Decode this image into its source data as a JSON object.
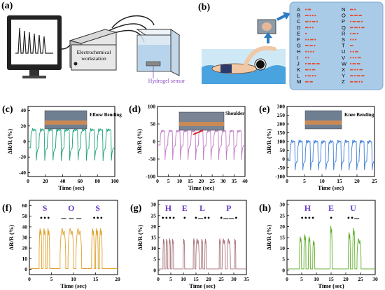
{
  "panels": {
    "a": {
      "label": "(a)",
      "workstation_label_1": "Electrochemical",
      "workstation_label_2": "workstation",
      "sensor_label": "Hydrogel sensor"
    },
    "b": {
      "label": "(b)"
    },
    "c": {
      "label": "(c)",
      "annotation": "Elbow Bending"
    },
    "d": {
      "label": "(d)",
      "annotation": "Shoulder"
    },
    "e": {
      "label": "(e)",
      "annotation": "Knee Bending"
    },
    "f": {
      "label": "(f)"
    },
    "g": {
      "label": "(g)"
    },
    "h": {
      "label": "(h)"
    }
  },
  "morse_table": {
    "left": [
      {
        "letter": "A",
        "code": ".-"
      },
      {
        "letter": "B",
        "code": "-..."
      },
      {
        "letter": "C",
        "code": "-.-."
      },
      {
        "letter": "D",
        "code": "-.."
      },
      {
        "letter": "E",
        "code": "."
      },
      {
        "letter": "F",
        "code": "..-."
      },
      {
        "letter": "G",
        "code": "--."
      },
      {
        "letter": "H",
        "code": "...."
      },
      {
        "letter": "I",
        "code": ".."
      },
      {
        "letter": "J",
        "code": ".---"
      },
      {
        "letter": "K",
        "code": "-.-"
      },
      {
        "letter": "L",
        "code": ".-.."
      },
      {
        "letter": "M",
        "code": "--"
      }
    ],
    "right": [
      {
        "letter": "N",
        "code": "-."
      },
      {
        "letter": "O",
        "code": "---"
      },
      {
        "letter": "P",
        "code": ".--."
      },
      {
        "letter": "Q",
        "code": "--.-"
      },
      {
        "letter": "R",
        "code": ".-."
      },
      {
        "letter": "S",
        "code": "..."
      },
      {
        "letter": "T",
        "code": "-"
      },
      {
        "letter": "U",
        "code": "..-"
      },
      {
        "letter": "V",
        "code": "...-"
      },
      {
        "letter": "W",
        "code": ".--"
      },
      {
        "letter": "X",
        "code": "-..-"
      },
      {
        "letter": "Y",
        "code": "-.--"
      },
      {
        "letter": "Z",
        "code": "--.."
      }
    ]
  },
  "chart_data": [
    {
      "id": "c",
      "type": "line",
      "color": "#1aa37a",
      "xlabel": "Time (sec)",
      "ylabel": "ΔR/R (%)",
      "xlim": [
        0,
        100
      ],
      "ylim": [
        -45,
        45
      ],
      "xticks": [
        0,
        20,
        40,
        60,
        80,
        100
      ],
      "yticks": [
        -40,
        -20,
        0,
        20,
        40
      ],
      "pattern": {
        "kind": "pulses",
        "count": 10,
        "start": 3,
        "period": 9.6,
        "width": 6.5,
        "base": -8,
        "peak": 15,
        "dip": -28
      }
    },
    {
      "id": "d",
      "type": "line",
      "color": "#c07ac8",
      "xlabel": "Time (sec)",
      "ylabel": "ΔR/R (%)",
      "xlim": [
        0,
        40
      ],
      "ylim": [
        -100,
        100
      ],
      "xticks": [
        0,
        5,
        10,
        15,
        20,
        25,
        30,
        35,
        40
      ],
      "yticks": [
        -100,
        -50,
        0,
        50,
        100
      ],
      "pattern": {
        "kind": "pulses",
        "count": 11,
        "start": 1.2,
        "period": 3.5,
        "width": 2.2,
        "base": -10,
        "peak": 30,
        "dip": -60
      }
    },
    {
      "id": "e",
      "type": "line",
      "color": "#3d7fd6",
      "xlabel": "Time (sec)",
      "ylabel": "ΔR/R (%)",
      "xlim": [
        0,
        25
      ],
      "ylim": [
        -100,
        300
      ],
      "xticks": [
        0,
        5,
        10,
        15,
        20,
        25
      ],
      "yticks": [
        -100,
        -50,
        0,
        50,
        100,
        150,
        200,
        250,
        300
      ],
      "pattern": {
        "kind": "pulses",
        "count": 11,
        "start": 0.8,
        "period": 2.2,
        "width": 1.5,
        "base": -10,
        "peak": 100,
        "dip": -75
      }
    },
    {
      "id": "f",
      "type": "line",
      "color": "#e0a02a",
      "xlabel": "Time (sec)",
      "ylabel": "ΔR/R (%)",
      "xlim": [
        0,
        20
      ],
      "ylim": [
        -5,
        65
      ],
      "xticks": [
        0,
        5,
        10,
        15,
        20
      ],
      "yticks": [
        0,
        10,
        20,
        30,
        40,
        50,
        60
      ],
      "letters": [
        {
          "char": "S",
          "code": "•••",
          "x": 3.5
        },
        {
          "char": "O",
          "code": "— — —",
          "x": 9.5
        },
        {
          "char": "S",
          "code": "•••",
          "x": 15.5
        }
      ],
      "peaks": [
        [
          2.5,
          40,
          0.6
        ],
        [
          3.4,
          40,
          0.6
        ],
        [
          4.3,
          40,
          0.6
        ],
        [
          7.6,
          40,
          1.3
        ],
        [
          9.4,
          40,
          1.3
        ],
        [
          11.2,
          40,
          1.3
        ],
        [
          14.4,
          40,
          0.6
        ],
        [
          15.3,
          40,
          0.6
        ],
        [
          16.2,
          40,
          0.6
        ]
      ]
    },
    {
      "id": "g",
      "type": "line",
      "color": "#a8737a",
      "xlabel": "Time (sec)",
      "ylabel": "ΔR/R (%)",
      "xlim": [
        0,
        35
      ],
      "ylim": [
        -2,
        32
      ],
      "xticks": [
        0,
        5,
        10,
        15,
        20,
        25,
        30,
        35
      ],
      "yticks": [
        0,
        5,
        10,
        15,
        20,
        25,
        30
      ],
      "letters": [
        {
          "char": "H",
          "code": "••••",
          "x": 4
        },
        {
          "char": "E",
          "code": "•",
          "x": 10.5
        },
        {
          "char": "L",
          "code": "•—••",
          "x": 17.5
        },
        {
          "char": "P",
          "code": "•——•",
          "x": 28
        }
      ],
      "peaks": [
        [
          2.2,
          15,
          0.6
        ],
        [
          3.4,
          15,
          0.6
        ],
        [
          4.6,
          15,
          0.6
        ],
        [
          5.8,
          15,
          0.6
        ],
        [
          10.2,
          15,
          0.6
        ],
        [
          14.2,
          15,
          0.6
        ],
        [
          15.6,
          15,
          1.3
        ],
        [
          17.4,
          15,
          0.6
        ],
        [
          18.8,
          15,
          0.6
        ],
        [
          24.5,
          15,
          0.6
        ],
        [
          26,
          15,
          1.3
        ],
        [
          28,
          15,
          1.3
        ],
        [
          30.5,
          15,
          0.6
        ]
      ]
    },
    {
      "id": "h",
      "type": "line",
      "color": "#5fae2a",
      "xlabel": "Time (sec)",
      "ylabel": "ΔR/R (%)",
      "xlim": [
        0,
        30
      ],
      "ylim": [
        -2,
        32
      ],
      "xticks": [
        0,
        5,
        10,
        15,
        20,
        25,
        30
      ],
      "yticks": [
        0,
        5,
        10,
        15,
        20,
        25,
        30
      ],
      "letters": [
        {
          "char": "H",
          "code": "••••",
          "x": 7
        },
        {
          "char": "E",
          "code": "•",
          "x": 15
        },
        {
          "char": "U",
          "code": "••—",
          "x": 22.5
        }
      ],
      "peaks": [
        [
          4.6,
          16,
          0.7
        ],
        [
          6.1,
          17,
          0.7
        ],
        [
          7.6,
          16,
          0.7
        ],
        [
          9.1,
          14,
          0.7
        ],
        [
          15,
          21,
          0.7
        ],
        [
          21.2,
          18,
          0.7
        ],
        [
          22.7,
          20,
          0.7
        ],
        [
          24.5,
          15,
          1.4
        ]
      ]
    }
  ]
}
